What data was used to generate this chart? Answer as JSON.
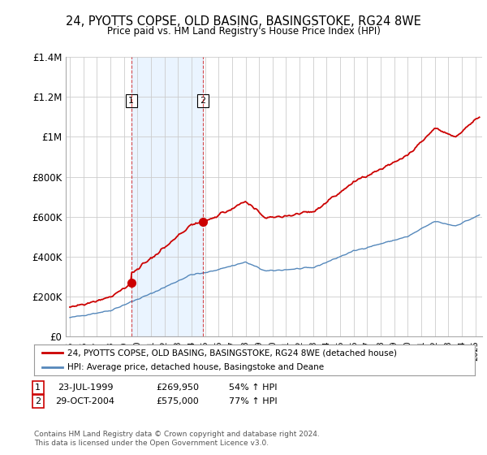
{
  "title": "24, PYOTTS COPSE, OLD BASING, BASINGSTOKE, RG24 8WE",
  "subtitle": "Price paid vs. HM Land Registry's House Price Index (HPI)",
  "legend_line1": "24, PYOTTS COPSE, OLD BASING, BASINGSTOKE, RG24 8WE (detached house)",
  "legend_line2": "HPI: Average price, detached house, Basingstoke and Deane",
  "footer": "Contains HM Land Registry data © Crown copyright and database right 2024.\nThis data is licensed under the Open Government Licence v3.0.",
  "sale1_date": "23-JUL-1999",
  "sale1_price": 269950,
  "sale1_pct": "54% ↑ HPI",
  "sale1_year": 1999.55,
  "sale2_date": "29-OCT-2004",
  "sale2_price": 575000,
  "sale2_pct": "77% ↑ HPI",
  "sale2_year": 2004.83,
  "red_color": "#cc0000",
  "blue_color": "#5588bb",
  "fill_color": "#ddeeff",
  "background_color": "#ffffff",
  "grid_color": "#cccccc",
  "ylim": [
    0,
    1400000
  ],
  "yticks": [
    0,
    200000,
    400000,
    600000,
    800000,
    1000000,
    1200000,
    1400000
  ],
  "ytick_labels": [
    "£0",
    "£200K",
    "£400K",
    "£600K",
    "£800K",
    "£1M",
    "£1.2M",
    "£1.4M"
  ]
}
